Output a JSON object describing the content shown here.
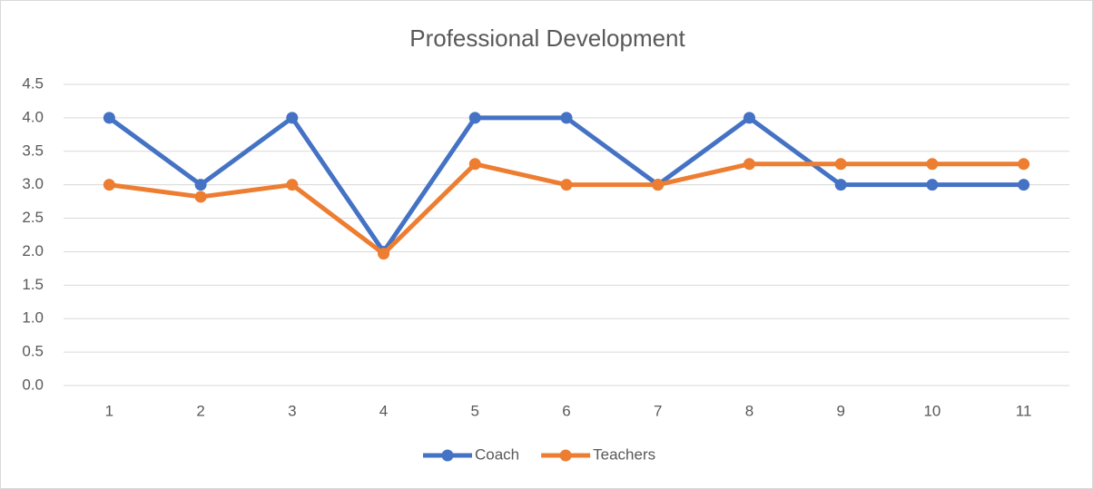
{
  "chart_data": {
    "type": "line",
    "title": "Professional Development",
    "categories": [
      "1",
      "2",
      "3",
      "4",
      "5",
      "6",
      "7",
      "8",
      "9",
      "10",
      "11"
    ],
    "series": [
      {
        "name": "Coach",
        "color": "#4472c4",
        "values": [
          4,
          3,
          4,
          2,
          4,
          4,
          3,
          4,
          3,
          3,
          3
        ]
      },
      {
        "name": "Teachers",
        "color": "#ed7d31",
        "values": [
          3,
          2.82,
          3,
          1.97,
          3.31,
          3,
          3,
          3.31,
          3.31,
          3.31,
          3.31
        ]
      }
    ],
    "ylim": [
      0,
      4.5
    ],
    "yticks": [
      {
        "value": 0,
        "label": "0.0"
      },
      0.5,
      {
        "value": 1,
        "label": "1.0"
      },
      1.5,
      {
        "value": 2,
        "label": "2.0"
      },
      2.5,
      {
        "value": 3,
        "label": "3.0"
      },
      3.5,
      {
        "value": 4,
        "label": "4.0"
      },
      4.5
    ],
    "grid": true,
    "legend": "bottom"
  }
}
